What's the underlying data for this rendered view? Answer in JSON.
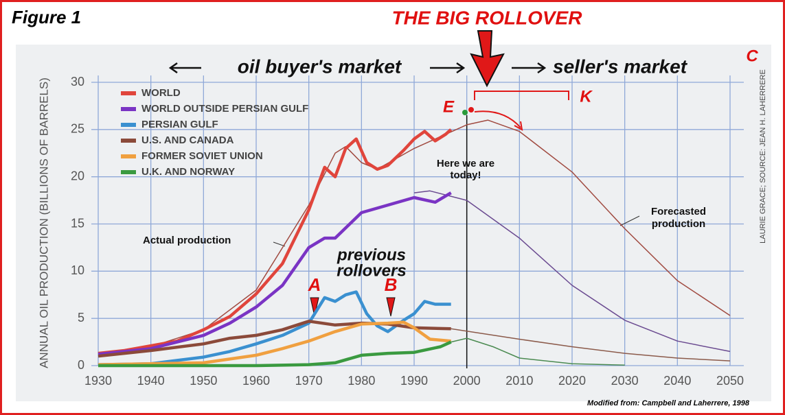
{
  "chart_data": {
    "type": "line",
    "title": "THE BIG ROLLOVER",
    "figure_label": "Figure 1",
    "ylabel": "ANNUAL OIL PRODUCTION (BILLIONS OF BARRELS)",
    "xlim": [
      1930,
      2050
    ],
    "xticks": [
      1930,
      1940,
      1950,
      1960,
      1970,
      1980,
      1990,
      2000,
      2010,
      2020,
      2030,
      2040,
      2050
    ],
    "ylim": [
      0,
      30
    ],
    "yticks": [
      0,
      5,
      10,
      15,
      20,
      25,
      30
    ],
    "grid": true,
    "legend": "upper left",
    "today_line": 2000,
    "series": [
      {
        "name": "WORLD",
        "color": "#e0453c",
        "x": [
          1930,
          1935,
          1940,
          1945,
          1950,
          1955,
          1960,
          1965,
          1970,
          1973,
          1975,
          1977,
          1979,
          1981,
          1983,
          1985,
          1988,
          1990,
          1992,
          1994,
          1996,
          1997
        ],
        "values": [
          1.3,
          1.6,
          2.1,
          2.6,
          3.8,
          5.2,
          7.6,
          10.8,
          16.5,
          21,
          20,
          23,
          24,
          21.5,
          20.8,
          21.2,
          22.8,
          24,
          24.8,
          23.8,
          24.5,
          25
        ]
      },
      {
        "name": "WORLD OUTSIDE PERSIAN GULF",
        "color": "#7a34c4",
        "x": [
          1930,
          1940,
          1950,
          1955,
          1960,
          1965,
          1970,
          1973,
          1975,
          1980,
          1985,
          1990,
          1994,
          1997
        ],
        "values": [
          1.2,
          1.8,
          3.2,
          4.5,
          6.2,
          8.5,
          12.5,
          13.5,
          13.5,
          16.2,
          17,
          17.8,
          17.3,
          18.3
        ]
      },
      {
        "name": "PERSIAN GULF",
        "color": "#3a90d0",
        "x": [
          1930,
          1940,
          1950,
          1955,
          1960,
          1965,
          1970,
          1973,
          1975,
          1977,
          1979,
          1981,
          1983,
          1985,
          1988,
          1990,
          1992,
          1994,
          1997
        ],
        "values": [
          0.1,
          0.2,
          0.9,
          1.5,
          2.3,
          3.2,
          4.5,
          7.2,
          6.8,
          7.5,
          7.8,
          5.5,
          4.2,
          3.6,
          4.8,
          5.5,
          6.8,
          6.5,
          6.5
        ]
      },
      {
        "name": "U.S. AND CANADA",
        "color": "#8b4a3a",
        "x": [
          1930,
          1940,
          1950,
          1955,
          1960,
          1965,
          1970,
          1975,
          1980,
          1985,
          1990,
          1997
        ],
        "values": [
          1.0,
          1.6,
          2.3,
          2.9,
          3.2,
          3.8,
          4.7,
          4.3,
          4.5,
          4.4,
          4.0,
          3.9
        ]
      },
      {
        "name": "FORMER SOVIET UNION",
        "color": "#f0a040",
        "x": [
          1930,
          1940,
          1950,
          1960,
          1965,
          1970,
          1975,
          1980,
          1985,
          1988,
          1990,
          1993,
          1997
        ],
        "values": [
          0.1,
          0.2,
          0.3,
          1.1,
          1.8,
          2.6,
          3.6,
          4.4,
          4.5,
          4.6,
          4.0,
          2.8,
          2.6
        ]
      },
      {
        "name": "U.K. AND NORWAY",
        "color": "#3a9a40",
        "x": [
          1930,
          1960,
          1970,
          1975,
          1980,
          1985,
          1990,
          1995,
          1997
        ],
        "values": [
          0,
          0,
          0.1,
          0.3,
          1.1,
          1.3,
          1.4,
          2.0,
          2.5
        ]
      }
    ],
    "forecast": [
      {
        "color": "#a04a40",
        "x": [
          1930,
          1940,
          1950,
          1960,
          1970,
          1975,
          1977,
          1980,
          1983,
          1990,
          2000,
          2004,
          2010,
          2020,
          2030,
          2040,
          2050
        ],
        "values": [
          1.2,
          2,
          3.8,
          8,
          17,
          22.5,
          23.2,
          21.5,
          20.8,
          23,
          25.5,
          26,
          24.8,
          20.5,
          14.5,
          9,
          5.3
        ]
      },
      {
        "color": "#6a4a90",
        "x": [
          1990,
          1993,
          2000,
          2010,
          2020,
          2030,
          2040,
          2050
        ],
        "values": [
          18.3,
          18.5,
          17.5,
          13.5,
          8.5,
          4.8,
          2.6,
          1.5
        ]
      },
      {
        "color": "#8b5a4a",
        "x": [
          1997,
          2010,
          2020,
          2030,
          2040,
          2050
        ],
        "values": [
          3.9,
          2.8,
          2,
          1.3,
          0.8,
          0.5
        ]
      },
      {
        "color": "#4a8a50",
        "x": [
          1997,
          2000,
          2005,
          2010,
          2020,
          2030
        ],
        "values": [
          2.5,
          2.9,
          2,
          0.8,
          0.2,
          0.05
        ]
      }
    ],
    "annotations": {
      "buyers": "oil buyer's market",
      "sellers": "seller's market",
      "c": "C",
      "e": "E",
      "k": "K",
      "a": "A",
      "b": "B",
      "today": [
        "Here we are",
        "today!"
      ],
      "rollovers": [
        "previous",
        "rollovers"
      ],
      "actual": "Actual production",
      "forecasted": [
        "Forecasted",
        "production"
      ],
      "source": "Modified from: Campbell and Laherrere, 1998",
      "credit": "LAURIE GRACE; SOURCE: JEAN H. LAHERRERE"
    }
  }
}
